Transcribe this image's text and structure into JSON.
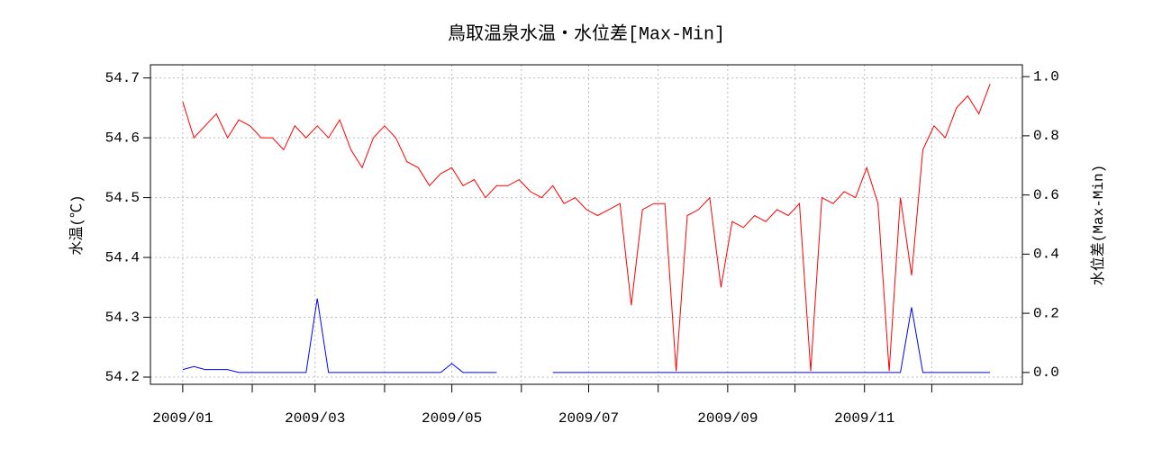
{
  "chart_data": {
    "type": "line",
    "title": "鳥取温泉水温・水位差[Max-Min]",
    "y_label": "水温(℃)",
    "y2_label": "水位差(Max-Min)",
    "x": [
      "2009/01/01",
      "2009/01/06",
      "2009/01/11",
      "2009/01/16",
      "2009/01/21",
      "2009/01/26",
      "2009/01/31",
      "2009/02/05",
      "2009/02/10",
      "2009/02/15",
      "2009/02/20",
      "2009/02/25",
      "2009/03/02",
      "2009/03/07",
      "2009/03/12",
      "2009/03/17",
      "2009/03/22",
      "2009/03/27",
      "2009/04/01",
      "2009/04/06",
      "2009/04/11",
      "2009/04/16",
      "2009/04/21",
      "2009/04/26",
      "2009/05/01",
      "2009/05/06",
      "2009/05/11",
      "2009/05/16",
      "2009/05/21",
      "2009/05/26",
      "2009/05/31",
      "2009/06/05",
      "2009/06/10",
      "2009/06/15",
      "2009/06/20",
      "2009/06/25",
      "2009/06/30",
      "2009/07/05",
      "2009/07/10",
      "2009/07/15",
      "2009/07/20",
      "2009/07/25",
      "2009/07/30",
      "2009/08/04",
      "2009/08/09",
      "2009/08/14",
      "2009/08/19",
      "2009/08/24",
      "2009/08/29",
      "2009/09/03",
      "2009/09/08",
      "2009/09/13",
      "2009/09/18",
      "2009/09/23",
      "2009/09/28",
      "2009/10/03",
      "2009/10/08",
      "2009/10/13",
      "2009/10/18",
      "2009/10/23",
      "2009/10/28",
      "2009/11/02",
      "2009/11/07",
      "2009/11/12",
      "2009/11/17",
      "2009/11/22",
      "2009/11/27",
      "2009/12/02",
      "2009/12/07",
      "2009/12/12",
      "2009/12/17",
      "2009/12/22",
      "2009/12/27"
    ],
    "series": [
      {
        "name": "水温",
        "color": "#ff0000",
        "values": [
          54.66,
          54.6,
          54.62,
          54.64,
          54.6,
          54.63,
          54.62,
          54.6,
          54.6,
          54.58,
          54.62,
          54.6,
          54.62,
          54.6,
          54.63,
          54.58,
          54.55,
          54.6,
          54.62,
          54.6,
          54.56,
          54.55,
          54.52,
          54.54,
          54.55,
          54.52,
          54.53,
          54.5,
          54.52,
          54.52,
          54.53,
          54.51,
          54.5,
          54.52,
          54.49,
          54.5,
          54.48,
          54.47,
          54.48,
          54.49,
          54.32,
          54.48,
          54.49,
          54.49,
          54.21,
          54.47,
          54.48,
          54.5,
          54.35,
          54.46,
          54.45,
          54.47,
          54.46,
          54.48,
          54.47,
          54.49,
          54.21,
          54.5,
          54.49,
          54.51,
          54.5,
          54.55,
          54.49,
          54.21,
          54.5,
          54.37,
          54.58,
          54.62,
          54.6,
          54.65,
          54.67,
          54.64,
          54.69
        ]
      },
      {
        "name": "水位差",
        "color": "#0000ff",
        "axis": "y2",
        "values": [
          0.01,
          0.02,
          0.01,
          0.01,
          0.01,
          0,
          0,
          0,
          0,
          0,
          0,
          0,
          0.25,
          0,
          0,
          0,
          0,
          0,
          0,
          0,
          0,
          0,
          0,
          0,
          0.03,
          0,
          0,
          0,
          0,
          null,
          null,
          null,
          null,
          0,
          0,
          0,
          0,
          0,
          0,
          0,
          0,
          0,
          0,
          0,
          0,
          0,
          0,
          0,
          0,
          0,
          0,
          0,
          0,
          0,
          0,
          0,
          0,
          0,
          0,
          0,
          0,
          0,
          0,
          0,
          0,
          0.22,
          0,
          0,
          0,
          0,
          0,
          0,
          0
        ]
      }
    ],
    "xlim": [
      "2009/01/01",
      "2009/12/27"
    ],
    "xticks": [
      {
        "value": "2009/01/01",
        "label": "2009/01"
      },
      {
        "value": "2009/02/01",
        "label": null
      },
      {
        "value": "2009/03/01",
        "label": "2009/03"
      },
      {
        "value": "2009/04/01",
        "label": null
      },
      {
        "value": "2009/05/01",
        "label": "2009/05"
      },
      {
        "value": "2009/06/01",
        "label": null
      },
      {
        "value": "2009/07/01",
        "label": "2009/07"
      },
      {
        "value": "2009/08/01",
        "label": null
      },
      {
        "value": "2009/09/01",
        "label": "2009/09"
      },
      {
        "value": "2009/10/01",
        "label": null
      },
      {
        "value": "2009/11/01",
        "label": "2009/11"
      },
      {
        "value": "2009/12/01",
        "label": null
      }
    ],
    "ylim": [
      54.188,
      54.722
    ],
    "yticks": [
      54.2,
      54.3,
      54.4,
      54.5,
      54.6,
      54.7
    ],
    "y2lim": [
      -0.04,
      1.04
    ],
    "y2ticks": [
      {
        "value": 0,
        "label": "0.0"
      },
      0.2,
      0.4,
      0.6,
      0.8,
      {
        "value": 1,
        "label": "1.0"
      }
    ],
    "grid": true
  }
}
